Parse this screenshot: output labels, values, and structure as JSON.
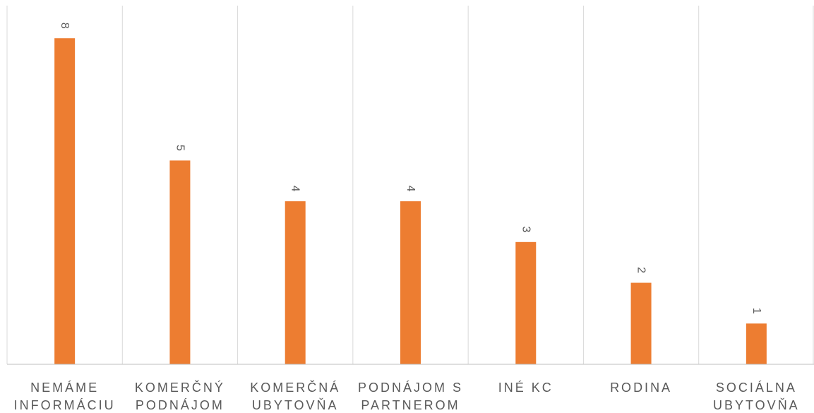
{
  "chart_data": {
    "type": "bar",
    "title": "",
    "xlabel": "",
    "ylabel": "",
    "categories": [
      [
        "NEMÁME",
        "INFORMÁCIU"
      ],
      [
        "KOMERČNÝ",
        "PODNÁJOM"
      ],
      [
        "KOMERČNÁ",
        "UBYTOVŇA"
      ],
      [
        "PODNÁJOM S",
        "PARTNEROM"
      ],
      [
        "INÉ KC"
      ],
      [
        "RODINA"
      ],
      [
        "SOCIÁLNA",
        "UBYTOVŇA"
      ]
    ],
    "values": [
      8,
      5,
      4,
      4,
      3,
      2,
      1
    ],
    "data_labels": [
      "8",
      "5",
      "4",
      "4",
      "3",
      "2",
      "1"
    ],
    "ylim": [
      0,
      8.8
    ],
    "data_labels_rotation": "rotated 90° clockwise",
    "grid": "vertical category separators",
    "legend": "none",
    "colors": {
      "bar": "#ED7D31",
      "gridline": "#D9D9D9",
      "axis": "#BFBFBF",
      "text": "#595959"
    }
  }
}
